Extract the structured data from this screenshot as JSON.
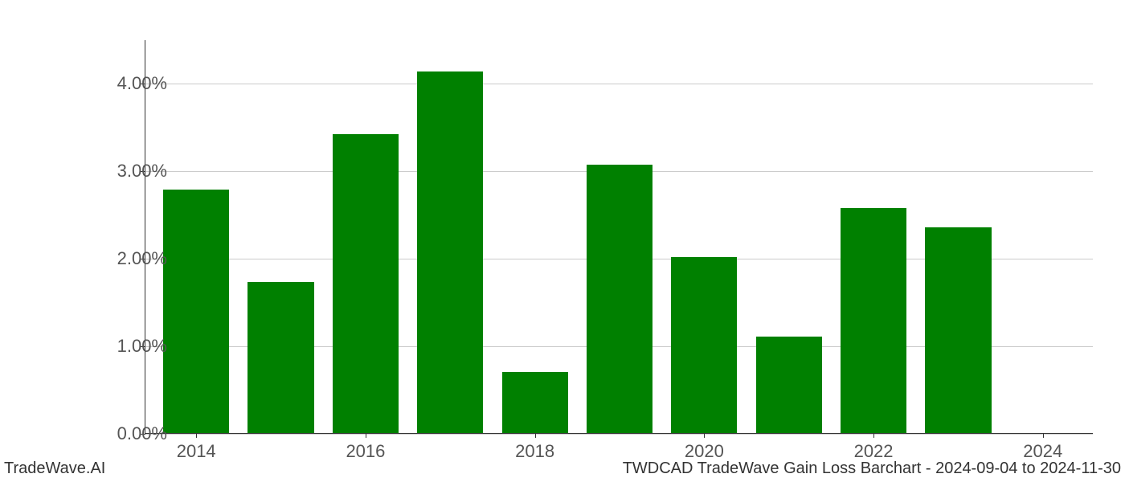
{
  "chart": {
    "type": "bar",
    "background_color": "#ffffff",
    "grid_color": "#cccccc",
    "bar_color": "#008000",
    "axis_color": "#333333",
    "tick_label_color": "#555555",
    "tick_fontsize": 22,
    "years": [
      2014,
      2015,
      2016,
      2017,
      2018,
      2019,
      2020,
      2021,
      2022,
      2023,
      2024
    ],
    "values": [
      2.78,
      1.73,
      3.42,
      4.13,
      0.7,
      3.07,
      2.01,
      1.1,
      2.57,
      2.35,
      0.0
    ],
    "ymin": 0.0,
    "ymax": 4.5,
    "yticks": [
      0.0,
      1.0,
      2.0,
      3.0,
      4.0
    ],
    "ytick_labels": [
      "0.00%",
      "1.00%",
      "2.00%",
      "3.00%",
      "4.00%"
    ],
    "xticks": [
      2014,
      2016,
      2018,
      2020,
      2022,
      2024
    ],
    "xtick_labels": [
      "2014",
      "2016",
      "2018",
      "2020",
      "2022",
      "2024"
    ],
    "xmin": 2013.4,
    "xmax": 2024.6,
    "bar_width": 0.78
  },
  "footer": {
    "left": "TradeWave.AI",
    "right": "TWDCAD TradeWave Gain Loss Barchart - 2024-09-04 to 2024-11-30"
  }
}
